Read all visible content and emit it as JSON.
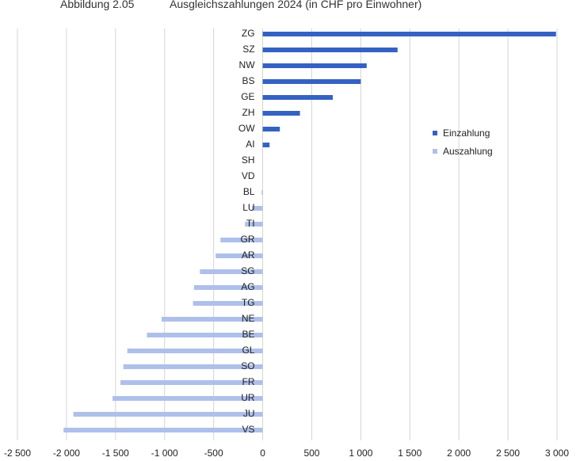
{
  "header": {
    "figure_label": "Abbildung 2.05",
    "title": "Ausgleichszahlungen 2024 (in CHF pro Einwohner)"
  },
  "chart_data": {
    "type": "bar",
    "orientation": "horizontal",
    "title": "Ausgleichszahlungen 2024 (in CHF pro Einwohner)",
    "xlabel": "",
    "ylabel": "",
    "xlim": [
      -2500,
      3000
    ],
    "xticks": [
      -2500,
      -2000,
      -1500,
      -1000,
      -500,
      0,
      500,
      1000,
      1500,
      2000,
      2500,
      3000
    ],
    "xtick_labels": [
      "-2 500",
      "-2 000",
      "-1 500",
      "-1 000",
      "-500",
      "0",
      "500",
      "1 000",
      "1 500",
      "2 000",
      "2 500",
      "3 000"
    ],
    "grid": "vertical",
    "legend_position": "right",
    "categories": [
      "ZG",
      "SZ",
      "NW",
      "BS",
      "GE",
      "ZH",
      "OW",
      "AI",
      "SH",
      "VD",
      "BL",
      "LU",
      "TI",
      "GR",
      "AR",
      "SG",
      "AG",
      "TG",
      "NE",
      "BE",
      "GL",
      "SO",
      "FR",
      "UR",
      "JU",
      "VS"
    ],
    "series": [
      {
        "name": "Einzahlung",
        "color": "#3462c2",
        "values": [
          2990,
          1375,
          1060,
          1000,
          715,
          380,
          175,
          70,
          0,
          0,
          0,
          0,
          0,
          0,
          0,
          0,
          0,
          0,
          0,
          0,
          0,
          0,
          0,
          0,
          0,
          0
        ]
      },
      {
        "name": "Auszahlung",
        "color": "#aec0ea",
        "values": [
          0,
          0,
          0,
          0,
          0,
          0,
          0,
          0,
          0,
          0,
          -10,
          -110,
          -180,
          -430,
          -480,
          -640,
          -700,
          -710,
          -1030,
          -1180,
          -1380,
          -1420,
          -1450,
          -1530,
          -1930,
          -2030
        ]
      }
    ]
  }
}
